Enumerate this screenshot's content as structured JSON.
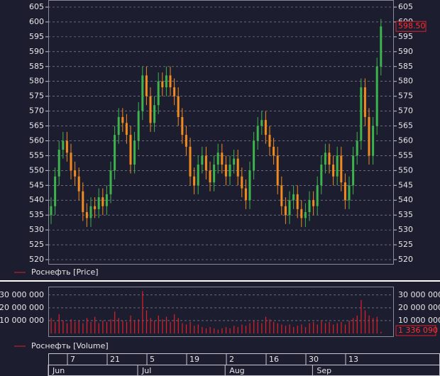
{
  "chart_data": {
    "type": "candlestick",
    "price": {
      "name": "Роснефть [Price]",
      "up_color": "#3cb44b",
      "down_color": "#f28a1e",
      "last_label": "598.50",
      "open": [
        535,
        538,
        548,
        557,
        560,
        556,
        550,
        548,
        543,
        536,
        534,
        538,
        537,
        541,
        538,
        542,
        550,
        562,
        568,
        566,
        562,
        552,
        560,
        570,
        582,
        575,
        566,
        572,
        580,
        578,
        582,
        578,
        575,
        568,
        562,
        558,
        548,
        545,
        552,
        555,
        550,
        546,
        552,
        556,
        552,
        548,
        552,
        554,
        548,
        544,
        540,
        550,
        560,
        565,
        567,
        562,
        558,
        555,
        545,
        538,
        535,
        540,
        542,
        537,
        534,
        536,
        540,
        538,
        545,
        552,
        556,
        552,
        548,
        555,
        546,
        540,
        545,
        555,
        560,
        578,
        568,
        555,
        565,
        585
      ],
      "high": [
        541,
        551,
        560,
        563,
        563,
        559,
        553,
        551,
        546,
        539,
        541,
        541,
        544,
        544,
        545,
        553,
        565,
        571,
        571,
        569,
        565,
        563,
        573,
        585,
        585,
        578,
        575,
        583,
        583,
        585,
        585,
        581,
        578,
        571,
        565,
        561,
        551,
        555,
        558,
        558,
        553,
        555,
        559,
        559,
        555,
        555,
        557,
        557,
        551,
        547,
        553,
        563,
        568,
        570,
        570,
        565,
        561,
        558,
        548,
        541,
        543,
        545,
        545,
        540,
        539,
        543,
        543,
        548,
        555,
        559,
        559,
        555,
        558,
        558,
        549,
        548,
        558,
        563,
        581,
        581,
        571,
        568,
        588,
        601
      ],
      "low": [
        532,
        535,
        545,
        554,
        553,
        547,
        545,
        540,
        533,
        531,
        531,
        534,
        534,
        535,
        535,
        539,
        547,
        559,
        563,
        559,
        549,
        549,
        557,
        567,
        572,
        563,
        563,
        569,
        575,
        575,
        575,
        572,
        565,
        559,
        555,
        545,
        542,
        542,
        549,
        547,
        543,
        543,
        549,
        549,
        545,
        545,
        549,
        545,
        541,
        537,
        537,
        547,
        557,
        562,
        559,
        555,
        552,
        542,
        535,
        532,
        532,
        537,
        534,
        531,
        531,
        533,
        535,
        535,
        542,
        549,
        549,
        545,
        545,
        543,
        537,
        537,
        542,
        552,
        557,
        565,
        552,
        552,
        562,
        582
      ],
      "close": [
        538,
        548,
        557,
        560,
        556,
        550,
        548,
        543,
        536,
        534,
        538,
        537,
        541,
        538,
        542,
        550,
        562,
        568,
        566,
        562,
        552,
        560,
        570,
        582,
        575,
        566,
        572,
        580,
        578,
        582,
        578,
        575,
        568,
        562,
        558,
        548,
        545,
        552,
        555,
        550,
        546,
        552,
        556,
        552,
        548,
        552,
        554,
        548,
        544,
        540,
        550,
        560,
        565,
        567,
        562,
        558,
        555,
        545,
        538,
        535,
        540,
        542,
        537,
        534,
        536,
        540,
        538,
        545,
        552,
        556,
        552,
        548,
        555,
        546,
        540,
        545,
        555,
        560,
        578,
        568,
        555,
        565,
        585,
        598.5
      ],
      "ylim": [
        520,
        605
      ],
      "yticks": [
        520,
        525,
        530,
        535,
        540,
        545,
        550,
        555,
        560,
        565,
        570,
        575,
        580,
        585,
        590,
        595,
        600,
        605
      ]
    },
    "volume": {
      "name": "Роснефть [Volume]",
      "color": "#e0202a",
      "last_label": "1 336 090",
      "values": [
        12000000,
        9000000,
        15000000,
        10000000,
        8000000,
        11000000,
        9000000,
        10000000,
        8000000,
        12000000,
        9000000,
        13000000,
        8000000,
        10000000,
        9000000,
        11000000,
        17000000,
        12000000,
        10000000,
        9000000,
        14000000,
        10000000,
        11000000,
        33000000,
        18000000,
        12000000,
        10000000,
        14000000,
        11000000,
        13000000,
        9000000,
        15000000,
        12000000,
        8000000,
        7000000,
        9000000,
        6000000,
        7000000,
        5000000,
        4000000,
        5000000,
        4000000,
        3000000,
        4000000,
        5000000,
        4000000,
        6000000,
        5000000,
        7000000,
        6000000,
        8000000,
        10000000,
        9000000,
        8000000,
        13000000,
        11000000,
        9000000,
        8000000,
        7000000,
        6000000,
        7000000,
        5000000,
        6000000,
        7000000,
        5000000,
        8000000,
        9000000,
        7000000,
        10000000,
        8000000,
        9000000,
        7000000,
        8000000,
        9000000,
        7000000,
        10000000,
        12000000,
        14000000,
        26000000,
        18000000,
        14000000,
        12000000,
        13000000,
        1336090
      ],
      "ylim": [
        0,
        36000000
      ],
      "yticks": [
        {
          "value": 10000000,
          "label": "10 000 000"
        },
        {
          "value": 20000000,
          "label": "20 000 000"
        },
        {
          "value": 30000000,
          "label": "30 000 000"
        }
      ]
    },
    "xticks": [
      {
        "value": 5,
        "label": "7"
      },
      {
        "value": 15,
        "label": "21"
      },
      {
        "value": 25,
        "label": "5"
      },
      {
        "value": 35,
        "label": "19"
      },
      {
        "value": 45,
        "label": "2"
      },
      {
        "value": 55,
        "label": "16"
      },
      {
        "value": 65,
        "label": "30"
      },
      {
        "value": 75,
        "label": "13"
      }
    ],
    "months": [
      {
        "value": 0,
        "label": "Jun"
      },
      {
        "value": 22.5,
        "label": "Jul"
      },
      {
        "value": 44.5,
        "label": "Aug"
      },
      {
        "value": 66.5,
        "label": "Sep"
      }
    ],
    "grid": true
  }
}
